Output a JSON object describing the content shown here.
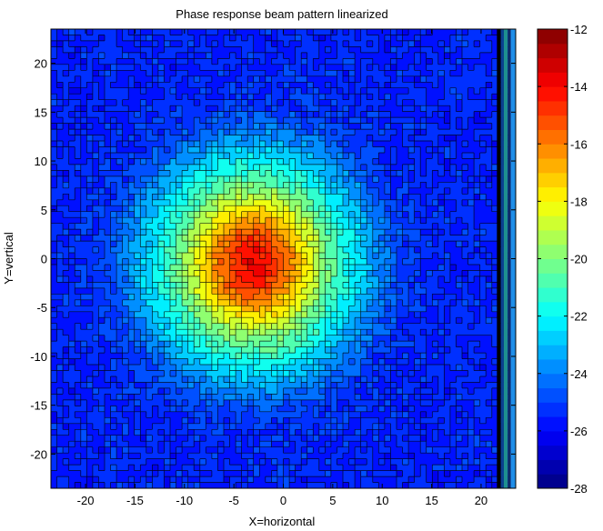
{
  "chart_data": {
    "type": "heatmap",
    "subtype": "filled-contour",
    "title": "Phase response beam pattern linearized",
    "xlabel": "X=horizontal",
    "ylabel": "Y=vertical",
    "xlim": [
      -23.5,
      23.5
    ],
    "ylim": [
      -23.5,
      23.5
    ],
    "xticks": [
      -20,
      -15,
      -10,
      -5,
      0,
      5,
      10,
      15,
      20
    ],
    "yticks": [
      -20,
      -15,
      -10,
      -5,
      0,
      5,
      10,
      15,
      20
    ],
    "colorbar": {
      "range": [
        -28,
        -12
      ],
      "ticks": [
        -12,
        -14,
        -16,
        -18,
        -20,
        -22,
        -24,
        -26,
        -28
      ],
      "colormap": "jet",
      "levels": 32
    },
    "peak": {
      "x": -3,
      "y": -0.5,
      "value": -12.5
    },
    "background_value": -25.5,
    "contour_lines": "black"
  }
}
